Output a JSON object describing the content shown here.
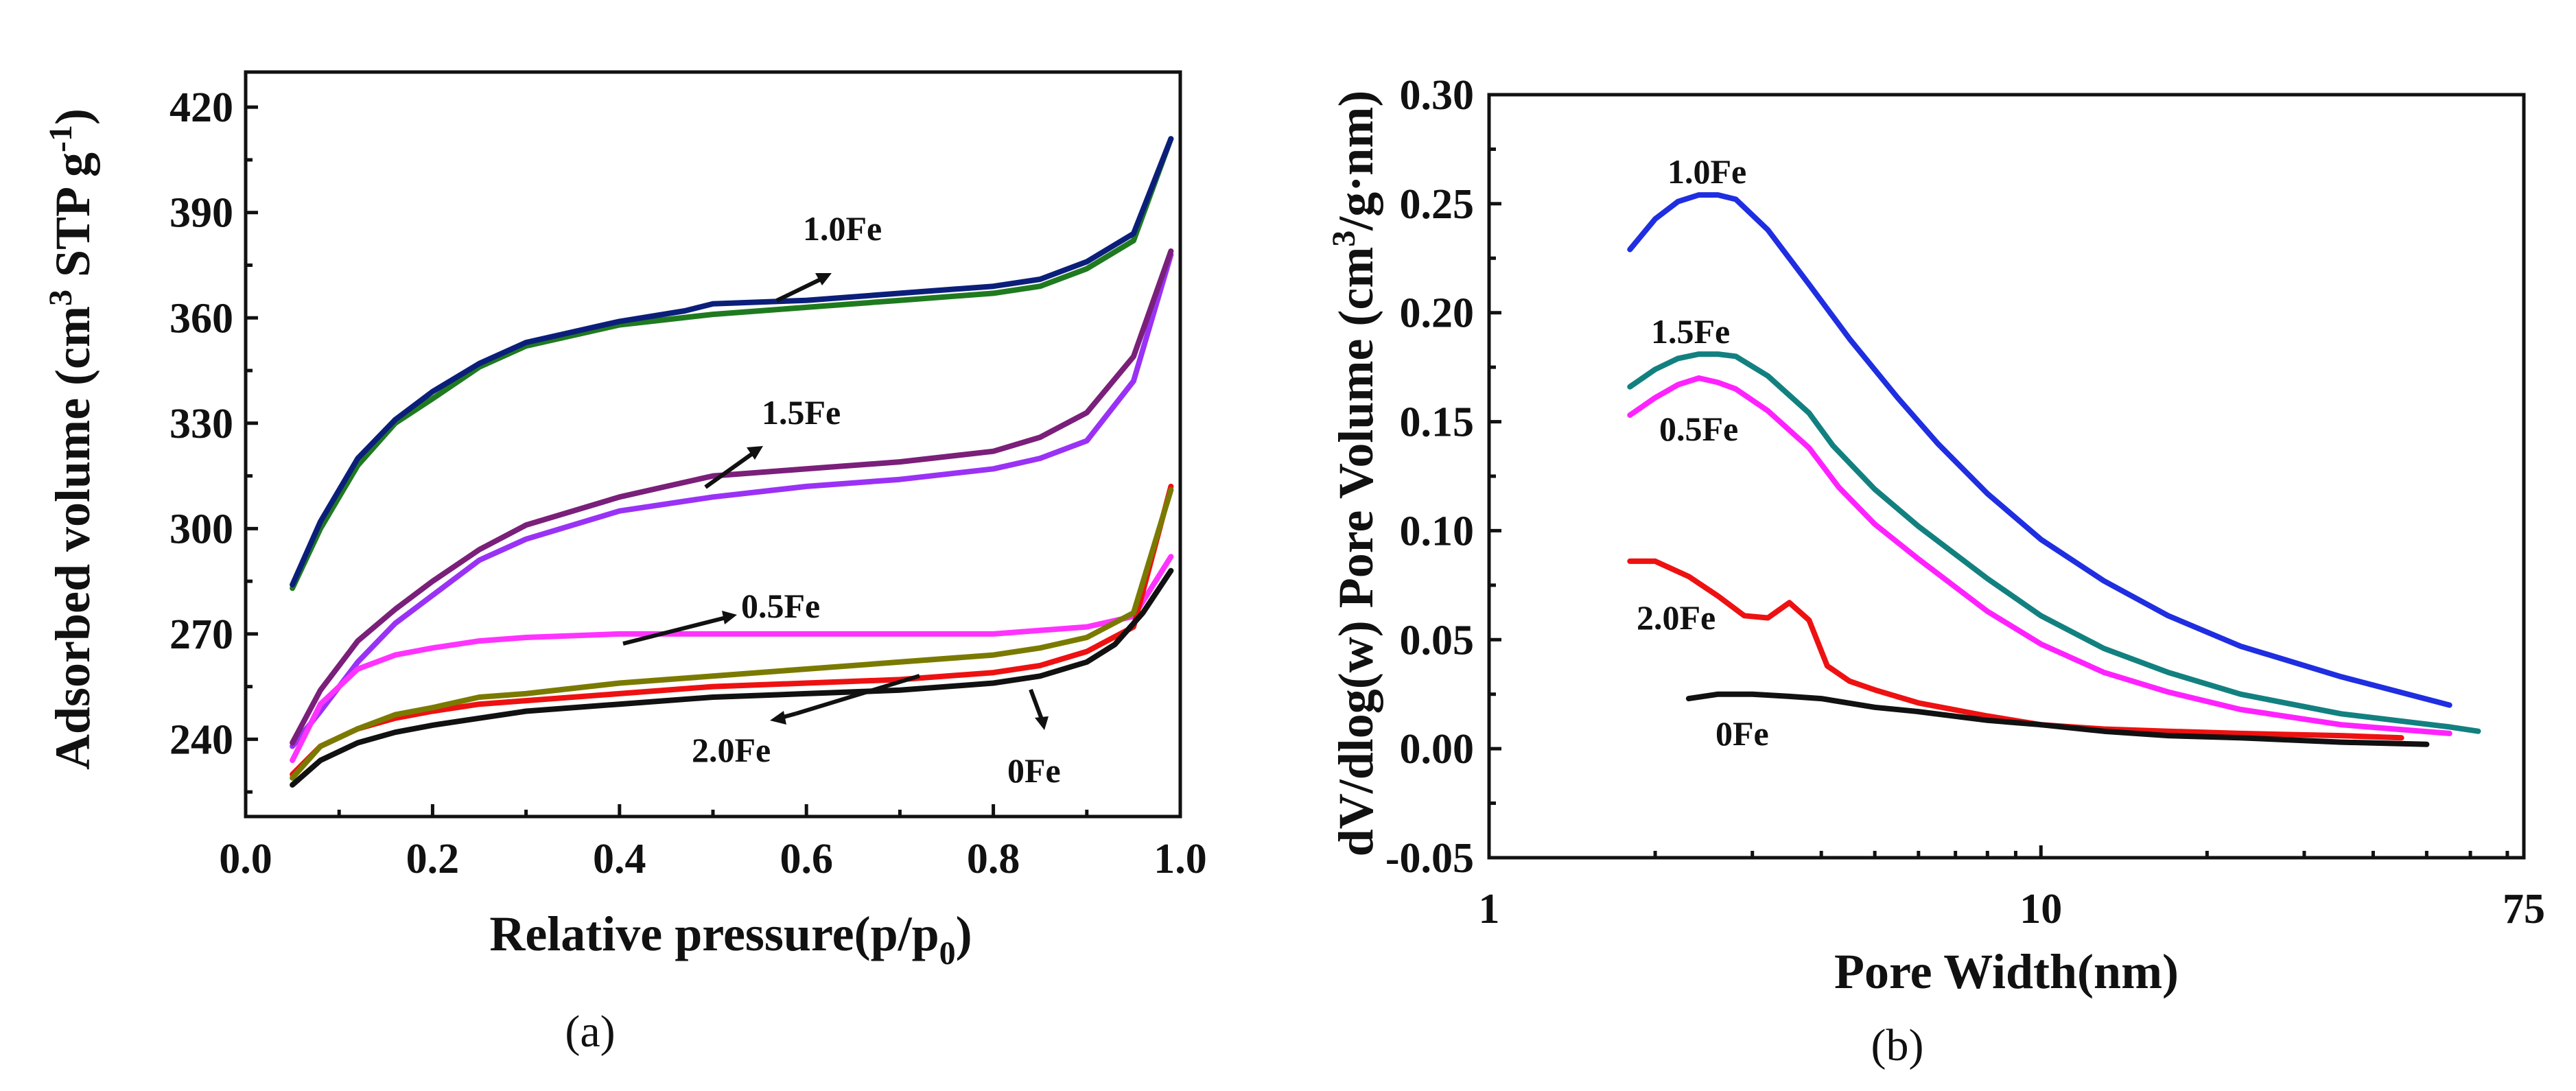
{
  "chart_data": [
    {
      "type": "line",
      "panel_label": "(a)",
      "ylabel_main": "Adsorbed volume (cm",
      "ylabel_sup3": "3",
      "ylabel_mid": " STP g",
      "ylabel_supm1": "-1",
      "ylabel_close": ")",
      "xlabel_main": "Relative pressure(p/p",
      "xlabel_sub": "0",
      "xlabel_close": ")",
      "xlim": [
        0.0,
        1.0
      ],
      "ylim": [
        218,
        430
      ],
      "xticks": [
        "0.0",
        "0.2",
        "0.4",
        "0.6",
        "0.8",
        "1.0"
      ],
      "yticks": [
        "240",
        "270",
        "300",
        "330",
        "360",
        "390",
        "420"
      ],
      "annotations": [
        "1.0Fe",
        "1.5Fe",
        "0.5Fe",
        "2.0Fe",
        "0Fe"
      ],
      "series": [
        {
          "name": "1.0Fe adsorption",
          "color": "#1f7a1f",
          "x": [
            0.05,
            0.08,
            0.12,
            0.16,
            0.2,
            0.25,
            0.3,
            0.4,
            0.5,
            0.6,
            0.7,
            0.8,
            0.85,
            0.9,
            0.95,
            0.99
          ],
          "y": [
            283,
            300,
            318,
            330,
            337,
            346,
            352,
            358,
            361,
            363,
            365,
            367,
            369,
            374,
            382,
            411
          ]
        },
        {
          "name": "1.0Fe desorption",
          "color": "#0b1f7a",
          "x": [
            0.05,
            0.08,
            0.12,
            0.16,
            0.2,
            0.25,
            0.3,
            0.4,
            0.47,
            0.5,
            0.6,
            0.7,
            0.8,
            0.85,
            0.9,
            0.95,
            0.99
          ],
          "y": [
            284,
            302,
            320,
            331,
            339,
            347,
            353,
            359,
            362,
            364,
            365,
            367,
            369,
            371,
            376,
            384,
            411
          ]
        },
        {
          "name": "1.5Fe adsorption",
          "color": "#9a32f5",
          "x": [
            0.05,
            0.08,
            0.12,
            0.16,
            0.2,
            0.25,
            0.3,
            0.4,
            0.5,
            0.6,
            0.7,
            0.8,
            0.85,
            0.9,
            0.95,
            0.99
          ],
          "y": [
            238,
            248,
            262,
            273,
            281,
            291,
            297,
            305,
            309,
            312,
            314,
            317,
            320,
            325,
            342,
            378
          ]
        },
        {
          "name": "1.5Fe desorption",
          "color": "#7a1f7a",
          "x": [
            0.05,
            0.08,
            0.12,
            0.16,
            0.2,
            0.25,
            0.3,
            0.4,
            0.45,
            0.5,
            0.6,
            0.7,
            0.8,
            0.85,
            0.9,
            0.95,
            0.99
          ],
          "y": [
            239,
            254,
            268,
            277,
            285,
            294,
            301,
            309,
            312,
            315,
            317,
            319,
            322,
            326,
            333,
            349,
            379
          ]
        },
        {
          "name": "0.5Fe",
          "color": "#ff33ff",
          "x": [
            0.05,
            0.08,
            0.12,
            0.16,
            0.2,
            0.25,
            0.3,
            0.4,
            0.5,
            0.6,
            0.7,
            0.8,
            0.9,
            0.95,
            0.99
          ],
          "y": [
            234,
            250,
            260,
            264,
            266,
            268,
            269,
            270,
            270,
            270,
            270,
            270,
            272,
            275,
            292
          ]
        },
        {
          "name": "2.0Fe adsorption",
          "color": "#ee1111",
          "x": [
            0.05,
            0.08,
            0.12,
            0.16,
            0.2,
            0.25,
            0.3,
            0.4,
            0.5,
            0.6,
            0.7,
            0.8,
            0.85,
            0.9,
            0.95,
            0.99
          ],
          "y": [
            230,
            238,
            243,
            246,
            248,
            250,
            251,
            253,
            255,
            256,
            257,
            259,
            261,
            265,
            272,
            312
          ]
        },
        {
          "name": "2.0Fe desorption",
          "color": "#7a7a00",
          "x": [
            0.05,
            0.08,
            0.12,
            0.16,
            0.2,
            0.25,
            0.3,
            0.4,
            0.5,
            0.6,
            0.7,
            0.8,
            0.85,
            0.9,
            0.95,
            0.99
          ],
          "y": [
            229,
            238,
            243,
            247,
            249,
            252,
            253,
            256,
            258,
            260,
            262,
            264,
            266,
            269,
            276,
            311
          ]
        },
        {
          "name": "0Fe",
          "color": "#111111",
          "x": [
            0.05,
            0.08,
            0.12,
            0.16,
            0.2,
            0.25,
            0.3,
            0.4,
            0.5,
            0.6,
            0.7,
            0.8,
            0.85,
            0.9,
            0.93,
            0.96,
            0.99
          ],
          "y": [
            227,
            234,
            239,
            242,
            244,
            246,
            248,
            250,
            252,
            253,
            254,
            256,
            258,
            262,
            267,
            276,
            288
          ]
        }
      ]
    },
    {
      "type": "line",
      "panel_label": "(b)",
      "ylabel": "dV/dlog(w) Pore Volume (cm",
      "ylabel_sup3": "3",
      "ylabel_close": "/g·nm)",
      "xlabel": "Pore Width(nm)",
      "xscale": "log",
      "xlim": [
        1,
        75
      ],
      "ylim": [
        -0.05,
        0.3
      ],
      "xticks": [
        "1",
        "10",
        "75"
      ],
      "yticks": [
        "-0.05",
        "0.00",
        "0.05",
        "0.10",
        "0.15",
        "0.20",
        "0.25",
        "0.30"
      ],
      "annotations": [
        "1.0Fe",
        "1.5Fe",
        "0.5Fe",
        "2.0Fe",
        "0Fe"
      ],
      "series": [
        {
          "name": "1.0Fe",
          "color": "#1f2ee0",
          "x": [
            1.8,
            2.0,
            2.2,
            2.4,
            2.6,
            2.8,
            3.2,
            3.8,
            4.5,
            5.5,
            6.5,
            8,
            10,
            13,
            17,
            23,
            35,
            55
          ],
          "y": [
            0.229,
            0.243,
            0.251,
            0.254,
            0.254,
            0.252,
            0.238,
            0.213,
            0.188,
            0.161,
            0.14,
            0.117,
            0.096,
            0.077,
            0.061,
            0.047,
            0.033,
            0.02
          ]
        },
        {
          "name": "1.5Fe",
          "color": "#138080",
          "x": [
            1.8,
            2.0,
            2.2,
            2.4,
            2.6,
            2.8,
            3.2,
            3.8,
            4.2,
            5,
            6,
            8,
            10,
            13,
            17,
            23,
            35,
            55,
            62
          ],
          "y": [
            0.166,
            0.174,
            0.179,
            0.181,
            0.181,
            0.18,
            0.171,
            0.154,
            0.139,
            0.119,
            0.102,
            0.078,
            0.061,
            0.046,
            0.035,
            0.025,
            0.016,
            0.01,
            0.008
          ]
        },
        {
          "name": "0.5Fe",
          "color": "#ff22ff",
          "x": [
            1.8,
            2.0,
            2.2,
            2.4,
            2.6,
            2.8,
            3.2,
            3.8,
            4.3,
            5,
            6,
            8,
            10,
            13,
            17,
            23,
            35,
            55
          ],
          "y": [
            0.153,
            0.161,
            0.167,
            0.17,
            0.168,
            0.165,
            0.155,
            0.138,
            0.12,
            0.103,
            0.087,
            0.063,
            0.048,
            0.035,
            0.026,
            0.018,
            0.011,
            0.007
          ]
        },
        {
          "name": "2.0Fe",
          "color": "#ee1111",
          "x": [
            1.8,
            2.0,
            2.3,
            2.6,
            2.9,
            3.2,
            3.5,
            3.8,
            4.1,
            4.5,
            5,
            6,
            8,
            10,
            13,
            17,
            23,
            35,
            45
          ],
          "y": [
            0.086,
            0.086,
            0.079,
            0.07,
            0.061,
            0.06,
            0.067,
            0.059,
            0.038,
            0.031,
            0.027,
            0.021,
            0.015,
            0.011,
            0.009,
            0.008,
            0.007,
            0.006,
            0.005
          ]
        },
        {
          "name": "0Fe",
          "color": "#111111",
          "x": [
            2.3,
            2.6,
            3.0,
            3.5,
            4,
            5,
            6,
            8,
            10,
            13,
            17,
            23,
            35,
            50
          ],
          "y": [
            0.023,
            0.025,
            0.025,
            0.024,
            0.023,
            0.019,
            0.017,
            0.013,
            0.011,
            0.008,
            0.006,
            0.005,
            0.003,
            0.002
          ]
        }
      ]
    }
  ]
}
